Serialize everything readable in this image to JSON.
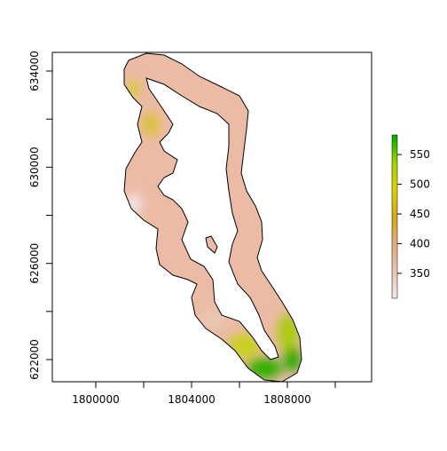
{
  "chart_data": {
    "type": "raster",
    "xlim": [
      1798185,
      1811518
    ],
    "ylim": [
      621077,
      634775
    ],
    "xticks": [
      1800000,
      {
        "value": 1802000,
        "label": null
      },
      1804000,
      {
        "value": 1806000,
        "label": null
      },
      1808000,
      {
        "value": 1810000,
        "label": null
      }
    ],
    "yticks": [
      622000,
      {
        "value": 624000,
        "label": null
      },
      626000,
      {
        "value": 628000,
        "label": null
      },
      630000,
      {
        "value": 632000,
        "label": null
      },
      634000
    ],
    "legend": {
      "lim": [
        308,
        583
      ],
      "ticks": [
        350,
        400,
        450,
        500,
        550
      ],
      "colors": [
        "#f2eaea",
        "#ebc3b0",
        "#e2ac7a",
        "#d9a71a",
        "#e0d000",
        "#9bd400",
        "#00a600"
      ]
    }
  }
}
